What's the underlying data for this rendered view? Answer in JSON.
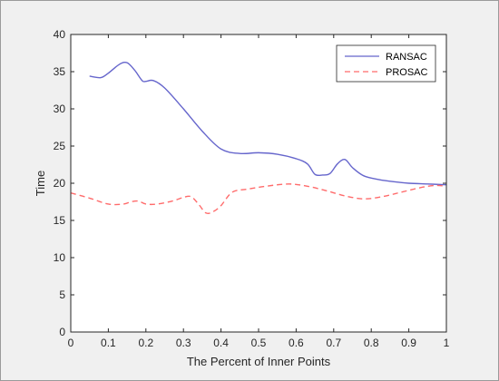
{
  "chart_data": {
    "type": "line",
    "title": "",
    "xlabel": "The Percent of Inner Points",
    "ylabel": "Time",
    "xlim": [
      0,
      1
    ],
    "ylim": [
      0,
      40
    ],
    "xticks": [
      "0",
      "0.1",
      "0.2",
      "0.3",
      "0.4",
      "0.5",
      "0.6",
      "0.7",
      "0.8",
      "0.9",
      "1"
    ],
    "yticks": [
      "0",
      "5",
      "10",
      "15",
      "20",
      "25",
      "30",
      "35",
      "40"
    ],
    "grid": false,
    "legend_position": "top-right",
    "series": [
      {
        "name": "RANSAC",
        "color": "#6666cc",
        "style": "solid",
        "x": [
          0.05,
          0.08,
          0.1,
          0.13,
          0.15,
          0.17,
          0.19,
          0.2,
          0.22,
          0.25,
          0.3,
          0.35,
          0.4,
          0.45,
          0.5,
          0.55,
          0.6,
          0.63,
          0.65,
          0.67,
          0.69,
          0.71,
          0.73,
          0.75,
          0.78,
          0.82,
          0.86,
          0.9,
          0.95,
          1.0
        ],
        "values": [
          34.4,
          34.2,
          34.8,
          36.0,
          36.2,
          35.2,
          33.8,
          33.7,
          33.8,
          32.8,
          30.0,
          27.0,
          24.6,
          24.0,
          24.1,
          23.9,
          23.3,
          22.6,
          21.2,
          21.1,
          21.3,
          22.6,
          23.2,
          22.1,
          21.0,
          20.5,
          20.2,
          20.0,
          19.9,
          19.8
        ]
      },
      {
        "name": "PROSAC",
        "color": "#ff6b6b",
        "style": "dashed",
        "x": [
          0.0,
          0.05,
          0.1,
          0.14,
          0.16,
          0.18,
          0.2,
          0.23,
          0.27,
          0.3,
          0.32,
          0.34,
          0.36,
          0.38,
          0.4,
          0.43,
          0.47,
          0.52,
          0.58,
          0.63,
          0.68,
          0.73,
          0.78,
          0.83,
          0.88,
          0.93,
          0.97,
          1.0
        ],
        "values": [
          18.7,
          18.0,
          17.2,
          17.2,
          17.5,
          17.6,
          17.2,
          17.2,
          17.6,
          18.1,
          18.2,
          17.2,
          16.0,
          16.2,
          17.0,
          18.8,
          19.2,
          19.6,
          19.9,
          19.6,
          19.0,
          18.3,
          17.9,
          18.2,
          18.8,
          19.4,
          19.7,
          19.6
        ]
      }
    ]
  }
}
